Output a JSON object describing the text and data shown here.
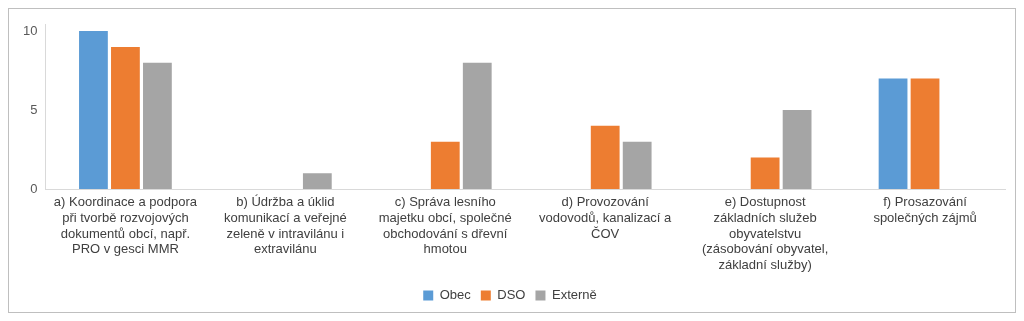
{
  "chart_data": {
    "type": "bar",
    "categories": [
      "a) Koordinace a podpora při tvorbě rozvojových dokumentů obcí, např. PRO v gesci MMR",
      "b) Údržba a úklid komunikací a veřejné zeleně v intravilánu i extravilánu",
      "c) Správa lesního majetku obcí, společné obchodování s dřevní hmotou",
      "d) Provozování vodovodů, kanalizací a ČOV",
      "e) Dostupnost základních služeb obyvatelstvu (zásobování obyvatel, základní služby)",
      "f) Prosazování společných zájmů"
    ],
    "series": [
      {
        "name": "Obec",
        "color": "#5b9bd5",
        "values": [
          10,
          null,
          null,
          null,
          null,
          7
        ]
      },
      {
        "name": "DSO",
        "color": "#ed7d31",
        "values": [
          9,
          0,
          3,
          4,
          2,
          7
        ]
      },
      {
        "name": "Externě",
        "color": "#a5a5a5",
        "values": [
          8,
          1,
          8,
          3,
          5,
          0
        ]
      }
    ],
    "ylim": [
      0,
      10.4
    ],
    "yticks": [
      0,
      5,
      10
    ],
    "grid": false,
    "legend": "bottom"
  }
}
